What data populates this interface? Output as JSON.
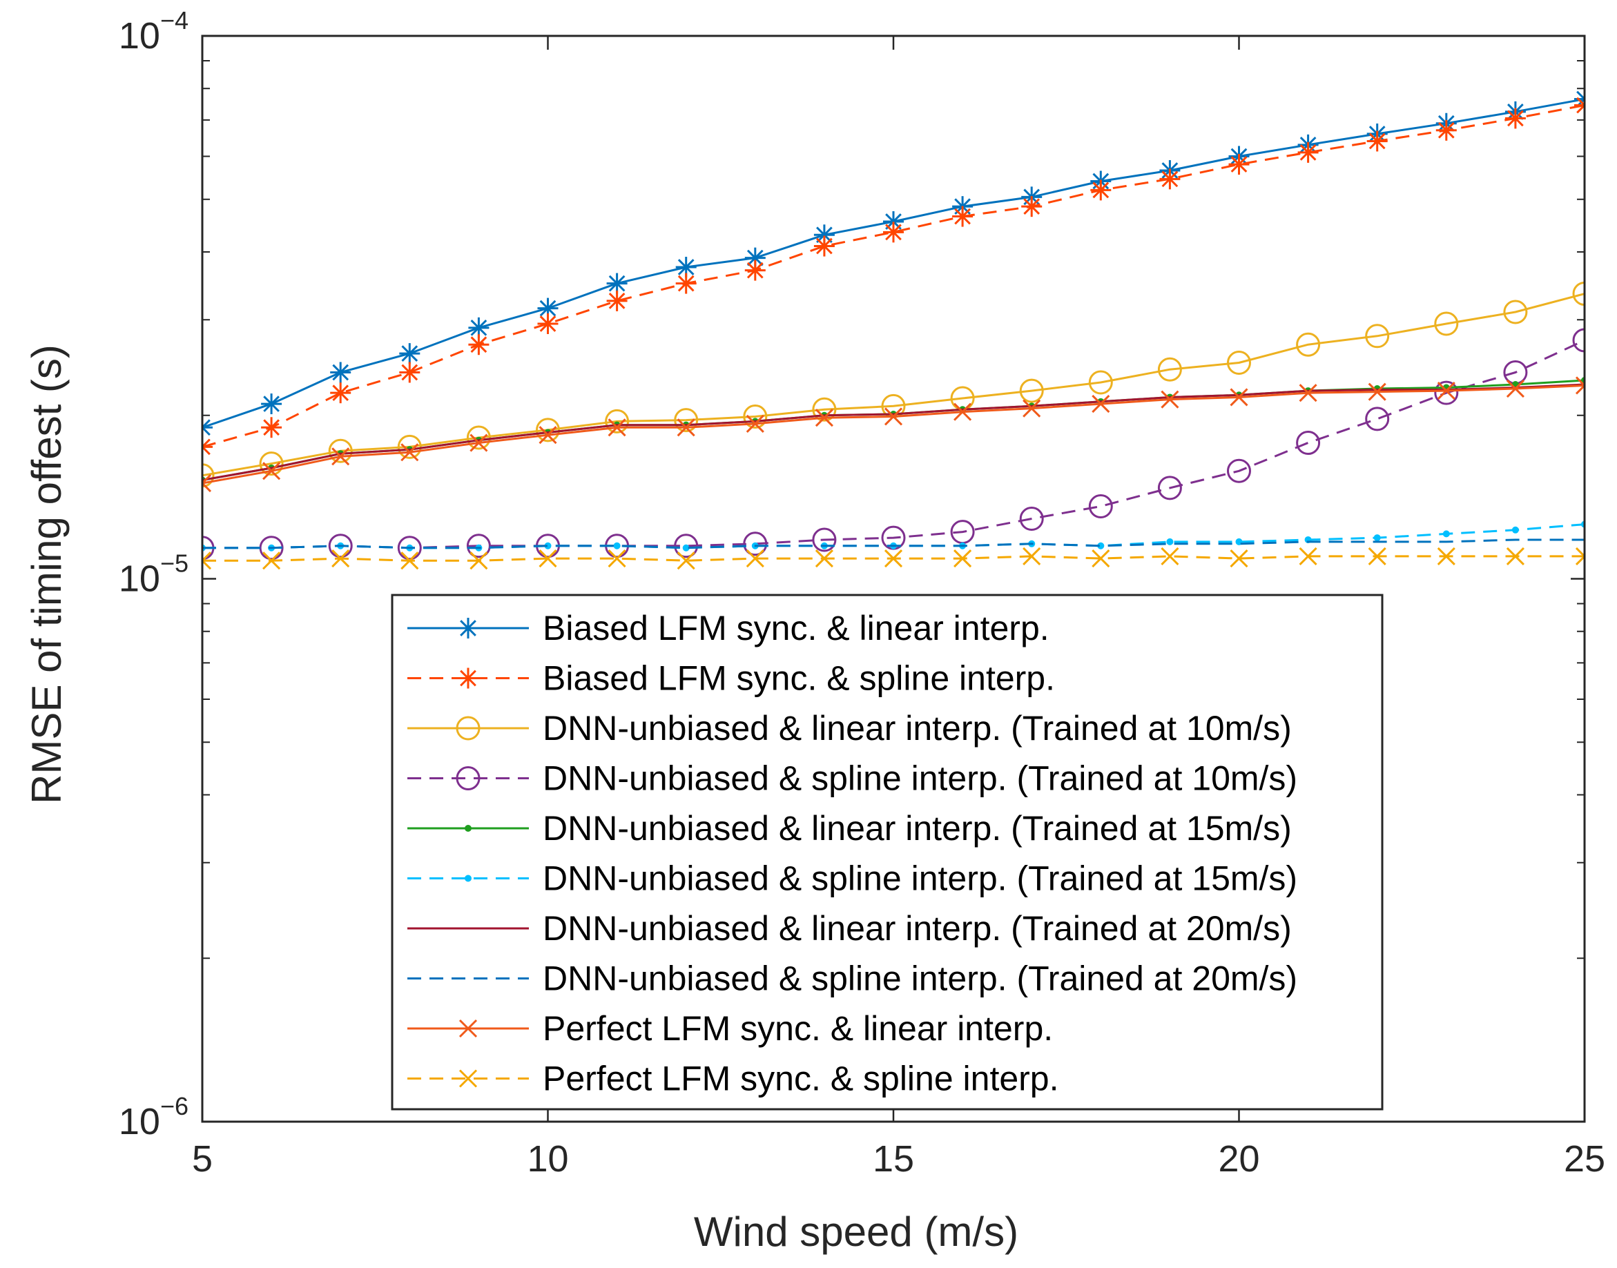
{
  "chart_data": {
    "type": "line",
    "title": "",
    "xlabel": "Wind speed (m/s)",
    "ylabel": "RMSE of timing offest (s)",
    "xlim": [
      5,
      25
    ],
    "ylim": [
      1e-06,
      0.0001
    ],
    "yscale": "log",
    "xticks": [
      "5",
      "10",
      "15",
      "20",
      "25"
    ],
    "yticks": [
      {
        "base": "10",
        "exp": "−6"
      },
      {
        "base": "10",
        "exp": "−5"
      },
      {
        "base": "10",
        "exp": "−4"
      }
    ],
    "grid": false,
    "legend_position": "bottom-center",
    "x": [
      5,
      6,
      7,
      8,
      9,
      10,
      11,
      12,
      13,
      14,
      15,
      16,
      17,
      18,
      19,
      20,
      21,
      22,
      23,
      24,
      25
    ],
    "series": [
      {
        "name": "Biased LFM sync. & linear interp.",
        "color": "#0072BD",
        "dash": "solid",
        "marker": "asterisk",
        "values": [
          1.9e-05,
          2.1e-05,
          2.4e-05,
          2.6e-05,
          2.9e-05,
          3.15e-05,
          3.5e-05,
          3.75e-05,
          3.9e-05,
          4.3e-05,
          4.55e-05,
          4.85e-05,
          5.05e-05,
          5.4e-05,
          5.65e-05,
          6e-05,
          6.3e-05,
          6.6e-05,
          6.9e-05,
          7.25e-05,
          7.65e-05
        ]
      },
      {
        "name": "Biased LFM sync. & spline interp.",
        "color": "#FF4500",
        "dash": "dashed",
        "marker": "asterisk",
        "values": [
          1.75e-05,
          1.9e-05,
          2.2e-05,
          2.4e-05,
          2.7e-05,
          2.95e-05,
          3.25e-05,
          3.5e-05,
          3.7e-05,
          4.1e-05,
          4.35e-05,
          4.65e-05,
          4.85e-05,
          5.2e-05,
          5.45e-05,
          5.8e-05,
          6.1e-05,
          6.4e-05,
          6.7e-05,
          7.05e-05,
          7.45e-05
        ]
      },
      {
        "name": "DNN-unbiased & linear interp. (Trained at 10m/s)",
        "color": "#EDB120",
        "dash": "solid",
        "marker": "circle",
        "values": [
          1.55e-05,
          1.63e-05,
          1.72e-05,
          1.75e-05,
          1.82e-05,
          1.88e-05,
          1.95e-05,
          1.96e-05,
          1.99e-05,
          2.05e-05,
          2.08e-05,
          2.15e-05,
          2.22e-05,
          2.3e-05,
          2.43e-05,
          2.5e-05,
          2.7e-05,
          2.8e-05,
          2.95e-05,
          3.1e-05,
          3.35e-05
        ]
      },
      {
        "name": "DNN-unbiased & spline interp. (Trained at 10m/s)",
        "color": "#7E2F8E",
        "dash": "dashed",
        "marker": "circle",
        "values": [
          1.14e-05,
          1.14e-05,
          1.15e-05,
          1.14e-05,
          1.15e-05,
          1.15e-05,
          1.15e-05,
          1.15e-05,
          1.16e-05,
          1.18e-05,
          1.19e-05,
          1.22e-05,
          1.29e-05,
          1.36e-05,
          1.47e-05,
          1.58e-05,
          1.78e-05,
          1.97e-05,
          2.2e-05,
          2.4e-05,
          2.75e-05
        ]
      },
      {
        "name": "DNN-unbiased & linear interp. (Trained at 15m/s)",
        "color": "#1F9E1F",
        "dash": "solid",
        "marker": "dot",
        "values": [
          1.52e-05,
          1.6e-05,
          1.7e-05,
          1.73e-05,
          1.8e-05,
          1.86e-05,
          1.92e-05,
          1.92e-05,
          1.95e-05,
          2e-05,
          2.01e-05,
          2.05e-05,
          2.08e-05,
          2.12e-05,
          2.16e-05,
          2.18e-05,
          2.22e-05,
          2.24e-05,
          2.25e-05,
          2.28e-05,
          2.32e-05
        ]
      },
      {
        "name": "DNN-unbiased & spline interp. (Trained at 15m/s)",
        "color": "#00BFFF",
        "dash": "dashed",
        "marker": "dot",
        "values": [
          1.14e-05,
          1.14e-05,
          1.15e-05,
          1.14e-05,
          1.14e-05,
          1.15e-05,
          1.15e-05,
          1.14e-05,
          1.15e-05,
          1.15e-05,
          1.15e-05,
          1.15e-05,
          1.16e-05,
          1.15e-05,
          1.17e-05,
          1.17e-05,
          1.18e-05,
          1.19e-05,
          1.21e-05,
          1.23e-05,
          1.26e-05
        ]
      },
      {
        "name": "DNN-unbiased & linear interp. (Trained at 20m/s)",
        "color": "#A2142F",
        "dash": "solid",
        "marker": "none",
        "values": [
          1.52e-05,
          1.6e-05,
          1.7e-05,
          1.73e-05,
          1.8e-05,
          1.86e-05,
          1.92e-05,
          1.92e-05,
          1.95e-05,
          2e-05,
          2.01e-05,
          2.05e-05,
          2.08e-05,
          2.12e-05,
          2.16e-05,
          2.18e-05,
          2.22e-05,
          2.23e-05,
          2.23e-05,
          2.25e-05,
          2.28e-05
        ]
      },
      {
        "name": "DNN-unbiased & spline interp. (Trained at 20m/s)",
        "color": "#0072BD",
        "dash": "dashed",
        "marker": "none",
        "values": [
          1.14e-05,
          1.14e-05,
          1.15e-05,
          1.14e-05,
          1.14e-05,
          1.15e-05,
          1.15e-05,
          1.14e-05,
          1.15e-05,
          1.15e-05,
          1.15e-05,
          1.15e-05,
          1.16e-05,
          1.15e-05,
          1.16e-05,
          1.16e-05,
          1.17e-05,
          1.17e-05,
          1.17e-05,
          1.18e-05,
          1.18e-05
        ]
      },
      {
        "name": "Perfect LFM sync. & linear interp.",
        "color": "#F05A1A",
        "dash": "solid",
        "marker": "x",
        "values": [
          1.5e-05,
          1.58e-05,
          1.68e-05,
          1.71e-05,
          1.78e-05,
          1.84e-05,
          1.9e-05,
          1.9e-05,
          1.93e-05,
          1.98e-05,
          1.99e-05,
          2.03e-05,
          2.06e-05,
          2.1e-05,
          2.14e-05,
          2.16e-05,
          2.2e-05,
          2.21e-05,
          2.22e-05,
          2.24e-05,
          2.27e-05
        ]
      },
      {
        "name": "Perfect LFM sync. & spline interp.",
        "color": "#F5A800",
        "dash": "dashed",
        "marker": "x",
        "values": [
          1.08e-05,
          1.08e-05,
          1.09e-05,
          1.08e-05,
          1.08e-05,
          1.09e-05,
          1.09e-05,
          1.08e-05,
          1.09e-05,
          1.09e-05,
          1.09e-05,
          1.09e-05,
          1.1e-05,
          1.09e-05,
          1.1e-05,
          1.09e-05,
          1.1e-05,
          1.1e-05,
          1.1e-05,
          1.1e-05,
          1.1e-05
        ]
      }
    ]
  }
}
